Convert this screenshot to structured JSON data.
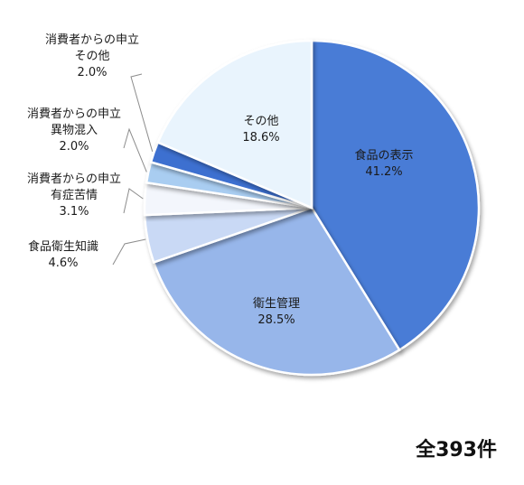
{
  "chart_data": {
    "type": "pie",
    "slices": [
      {
        "label_lines": [
          "食品の表示"
        ],
        "value": 41.2,
        "value_label": "41.2%",
        "color": "#4a7bd6"
      },
      {
        "label_lines": [
          "衛生管理"
        ],
        "value": 28.5,
        "value_label": "28.5%",
        "color": "#97b6ea"
      },
      {
        "label_lines": [
          "食品衛生知識"
        ],
        "value": 4.6,
        "value_label": "4.6%",
        "color": "#c9d9f5"
      },
      {
        "label_lines": [
          "消費者からの申立",
          "有症苦情"
        ],
        "value": 3.1,
        "value_label": "3.1%",
        "color": "#f3f6fc"
      },
      {
        "label_lines": [
          "消費者からの申立",
          "異物混入"
        ],
        "value": 2.0,
        "value_label": "2.0%",
        "color": "#a9cdf1"
      },
      {
        "label_lines": [
          "消費者からの申立",
          "その他"
        ],
        "value": 2.0,
        "value_label": "2.0%",
        "color": "#3d6fd0"
      },
      {
        "label_lines": [
          "その他"
        ],
        "value": 18.6,
        "value_label": "18.6%",
        "color": "#e9f4fd"
      }
    ]
  },
  "total_label": "全393件"
}
